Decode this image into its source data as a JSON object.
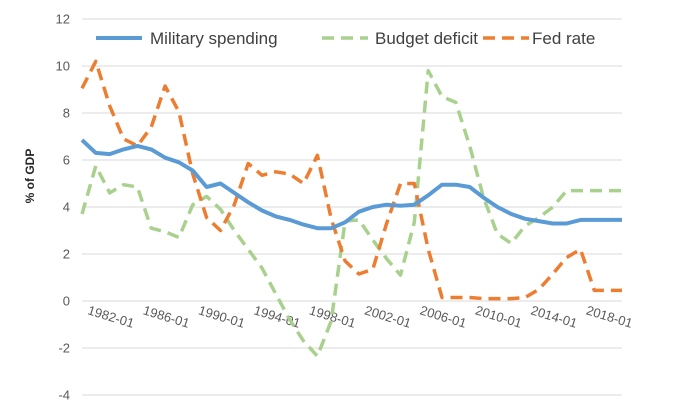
{
  "chart_data": {
    "type": "line",
    "ylabel": "% of GDP",
    "xlabel": "",
    "ylim": [
      -4,
      12
    ],
    "yticks": [
      -4,
      -2,
      0,
      2,
      4,
      6,
      8,
      10,
      12
    ],
    "x": [
      "1980-01",
      "1981-01",
      "1982-01",
      "1983-01",
      "1984-01",
      "1985-01",
      "1986-01",
      "1987-01",
      "1988-01",
      "1989-01",
      "1990-01",
      "1991-01",
      "1992-01",
      "1993-01",
      "1994-01",
      "1995-01",
      "1996-01",
      "1997-01",
      "1998-01",
      "1999-01",
      "2000-01",
      "2001-01",
      "2002-01",
      "2003-01",
      "2004-01",
      "2005-01",
      "2006-01",
      "2007-01",
      "2008-01",
      "2009-01",
      "2010-01",
      "2011-01",
      "2012-01",
      "2013-01",
      "2014-01",
      "2015-01",
      "2016-01",
      "2017-01",
      "2018-01",
      "2019-01"
    ],
    "xtick_labels": [
      "1982-01",
      "1986-01",
      "1990-01",
      "1994-01",
      "1998-01",
      "2002-01",
      "2006-01",
      "2010-01",
      "2014-01",
      "2018-01"
    ],
    "xtick_years": [
      1982,
      1986,
      1990,
      1994,
      1998,
      2002,
      2006,
      2010,
      2014,
      2018
    ],
    "grid": true,
    "legend_position": "top",
    "series": [
      {
        "name": "Military spending",
        "color": "#5b9bd5",
        "dash": "solid",
        "values": [
          6.85,
          6.3,
          6.25,
          6.45,
          6.6,
          6.45,
          6.1,
          5.9,
          5.55,
          4.85,
          5.0,
          4.6,
          4.2,
          3.85,
          3.6,
          3.45,
          3.25,
          3.1,
          3.1,
          3.35,
          3.8,
          4.0,
          4.1,
          4.05,
          4.1,
          4.5,
          4.95,
          4.95,
          4.85,
          4.4,
          4.0,
          3.7,
          3.5,
          3.4,
          3.3,
          3.3,
          3.45,
          3.45,
          3.45,
          3.45
        ]
      },
      {
        "name": "Budget deficit",
        "color": "#a9d18e",
        "dash": "dashed",
        "values": [
          3.7,
          5.75,
          4.6,
          4.95,
          4.85,
          3.1,
          2.95,
          2.7,
          4.1,
          4.45,
          3.9,
          3.0,
          2.2,
          1.4,
          0.3,
          -0.8,
          -1.7,
          -2.35,
          -0.85,
          3.4,
          3.45,
          2.6,
          1.8,
          1.1,
          3.35,
          9.8,
          8.7,
          8.45,
          6.6,
          4.4,
          2.85,
          2.45,
          3.2,
          3.55,
          4.0,
          4.7,
          4.7,
          4.7,
          4.7,
          4.7
        ]
      },
      {
        "name": "Fed rate",
        "color": "#ed7d31",
        "dash": "dashed",
        "values": [
          9.05,
          10.2,
          8.3,
          6.9,
          6.6,
          7.4,
          9.15,
          8.05,
          5.4,
          3.55,
          3.0,
          4.1,
          5.85,
          5.35,
          5.5,
          5.4,
          5.0,
          6.2,
          3.5,
          1.7,
          1.15,
          1.35,
          3.3,
          5.0,
          5.0,
          2.2,
          0.15,
          0.15,
          0.15,
          0.1,
          0.1,
          0.1,
          0.15,
          0.5,
          1.15,
          1.85,
          2.2,
          0.45,
          0.45,
          0.45
        ]
      }
    ]
  }
}
